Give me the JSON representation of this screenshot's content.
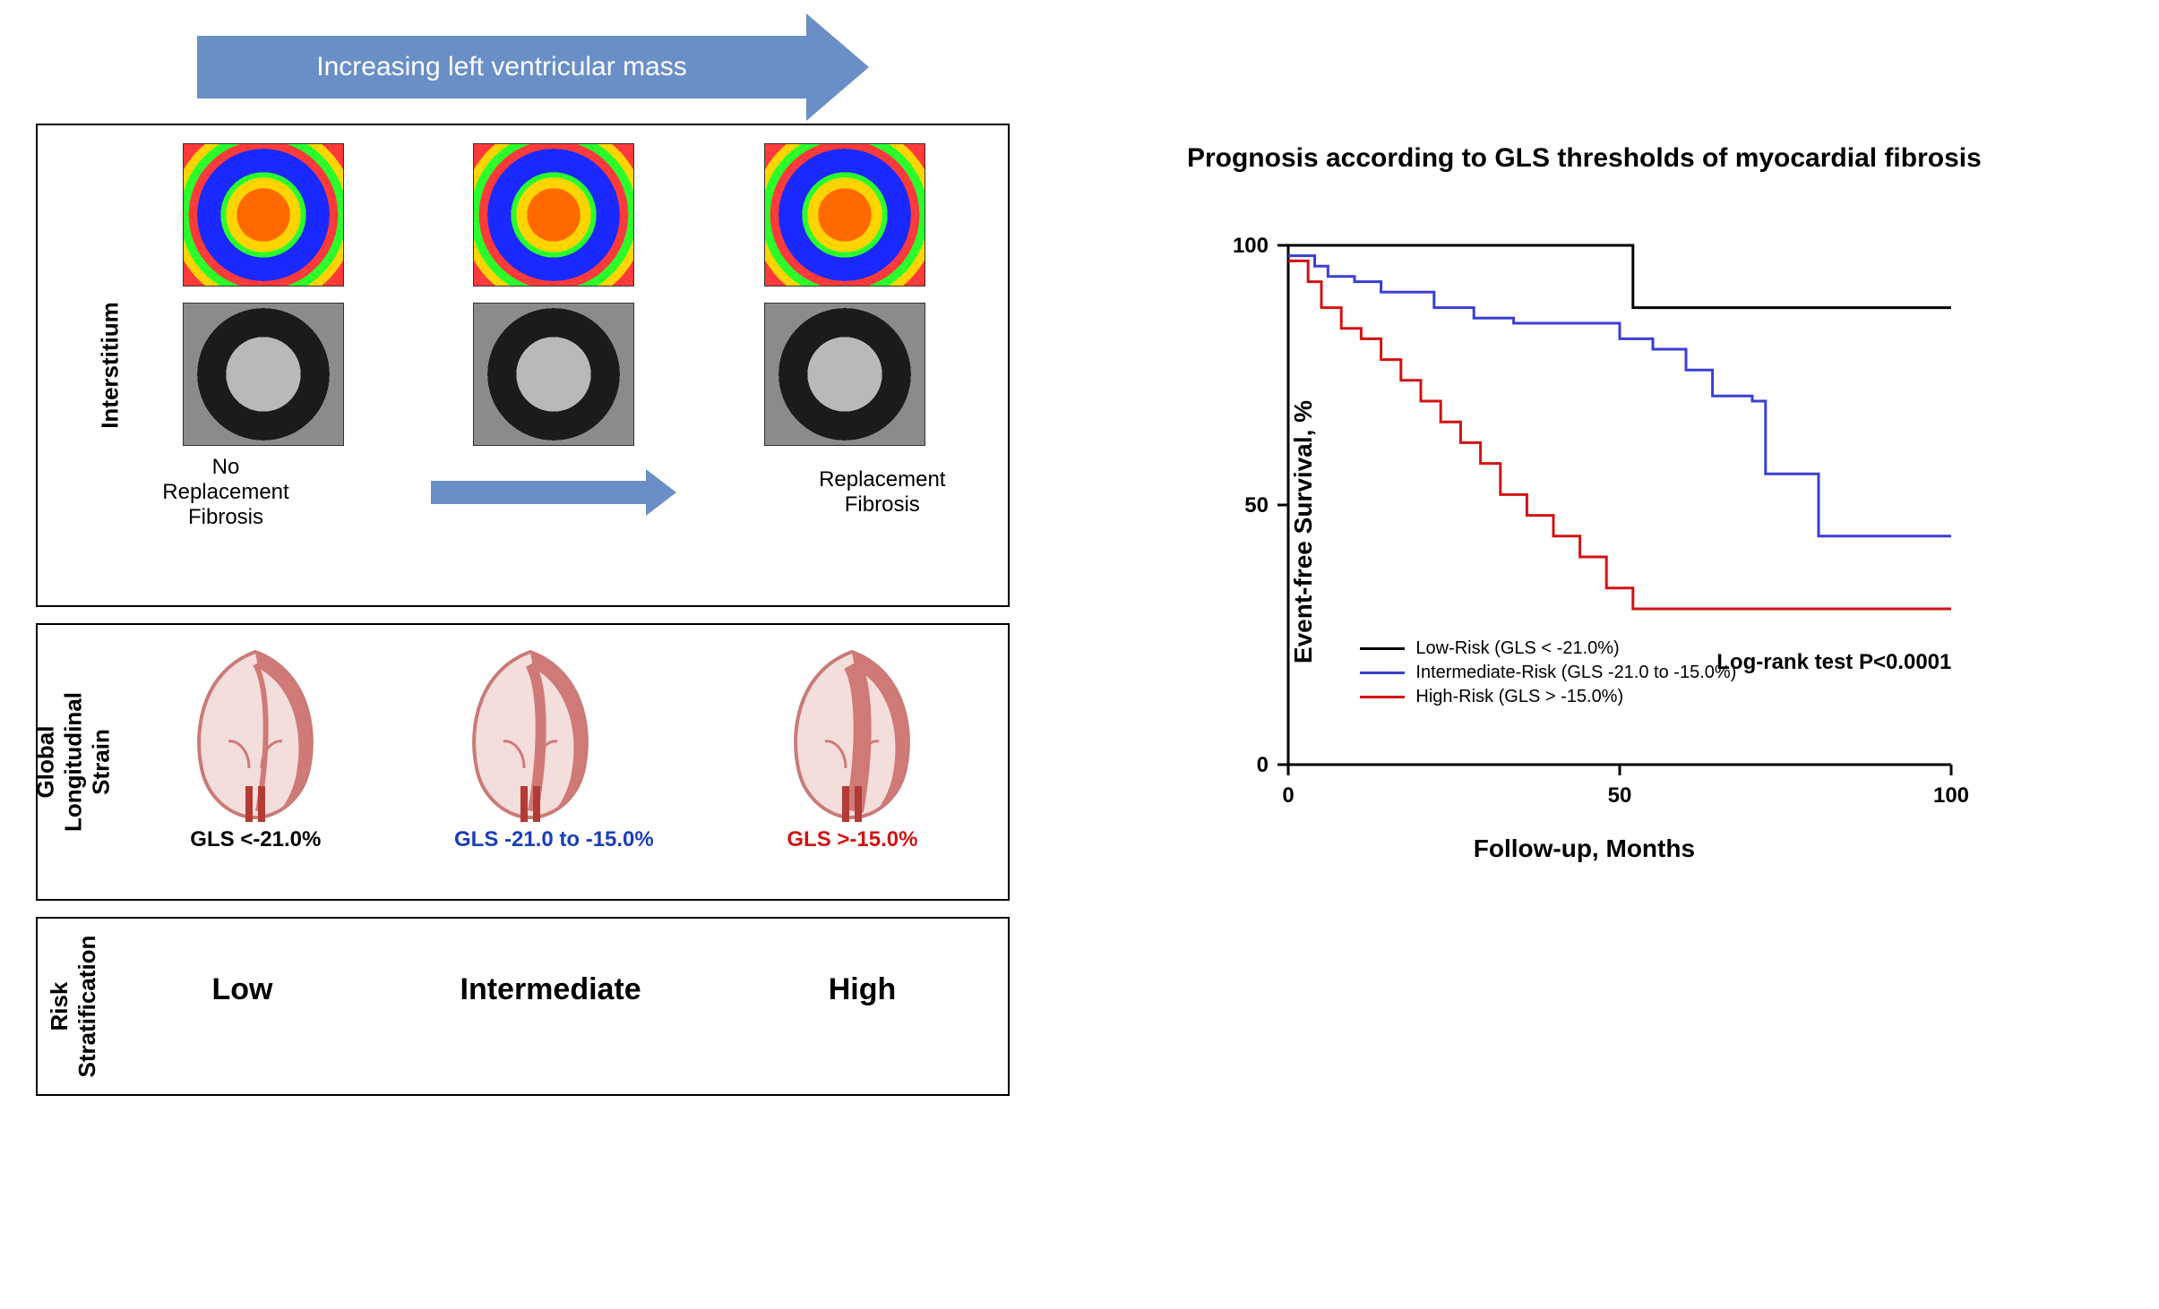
{
  "top_arrow_label": "Increasing left ventricular mass",
  "top_arrow_color": "#6a8fc7",
  "panels": {
    "interstitium": {
      "label": "Interstitium",
      "fibrosis_left": "No\nReplacement\nFibrosis",
      "fibrosis_right": "Replacement\nFibrosis"
    },
    "gls": {
      "label": "Global Longitudinal\nStrain",
      "items": [
        {
          "text": "GLS <-21.0%",
          "color": "#000000",
          "wall_thickness": 6
        },
        {
          "text": "GLS -21.0 to -15.0%",
          "color": "#1a3fb8",
          "wall_thickness": 12
        },
        {
          "text": "GLS >-15.0%",
          "color": "#d11313",
          "wall_thickness": 20
        }
      ]
    },
    "risk": {
      "label": "Risk\nStratification",
      "items": [
        "Low",
        "Intermediate",
        "High"
      ]
    }
  },
  "chart": {
    "title": "Prognosis according to GLS thresholds of myocardial fibrosis",
    "type": "kaplan-meier",
    "xlabel": "Follow-up, Months",
    "ylabel": "Event-free Survival, %",
    "xlim": [
      0,
      100
    ],
    "ylim": [
      0,
      100
    ],
    "xticks": [
      0,
      50,
      100
    ],
    "yticks": [
      0,
      50,
      100
    ],
    "background_color": "#ffffff",
    "axis_color": "#000000",
    "tick_fontsize": 24,
    "label_fontsize": 28,
    "title_fontsize": 30,
    "line_width": 3,
    "logrank": "Log-rank test P<0.0001",
    "series": [
      {
        "name": "Low-Risk (GLS < -21.0%)",
        "color": "#000000",
        "points": [
          [
            0,
            100
          ],
          [
            50,
            100
          ],
          [
            52,
            88
          ],
          [
            100,
            88
          ]
        ]
      },
      {
        "name": "Intermediate-Risk (GLS -21.0 to -15.0%)",
        "color": "#3a3fd1",
        "points": [
          [
            0,
            98
          ],
          [
            4,
            96
          ],
          [
            6,
            94
          ],
          [
            10,
            93
          ],
          [
            14,
            91
          ],
          [
            22,
            88
          ],
          [
            28,
            86
          ],
          [
            34,
            85
          ],
          [
            46,
            85
          ],
          [
            50,
            82
          ],
          [
            55,
            80
          ],
          [
            60,
            76
          ],
          [
            64,
            71
          ],
          [
            70,
            70
          ],
          [
            72,
            56
          ],
          [
            80,
            44
          ],
          [
            100,
            44
          ]
        ]
      },
      {
        "name": "High-Risk (GLS > -15.0%)",
        "color": "#d11313",
        "points": [
          [
            0,
            97
          ],
          [
            3,
            93
          ],
          [
            5,
            88
          ],
          [
            8,
            84
          ],
          [
            11,
            82
          ],
          [
            14,
            78
          ],
          [
            17,
            74
          ],
          [
            20,
            70
          ],
          [
            23,
            66
          ],
          [
            26,
            62
          ],
          [
            29,
            58
          ],
          [
            32,
            52
          ],
          [
            36,
            48
          ],
          [
            40,
            44
          ],
          [
            44,
            40
          ],
          [
            48,
            34
          ],
          [
            52,
            30
          ],
          [
            100,
            30
          ]
        ]
      }
    ]
  }
}
